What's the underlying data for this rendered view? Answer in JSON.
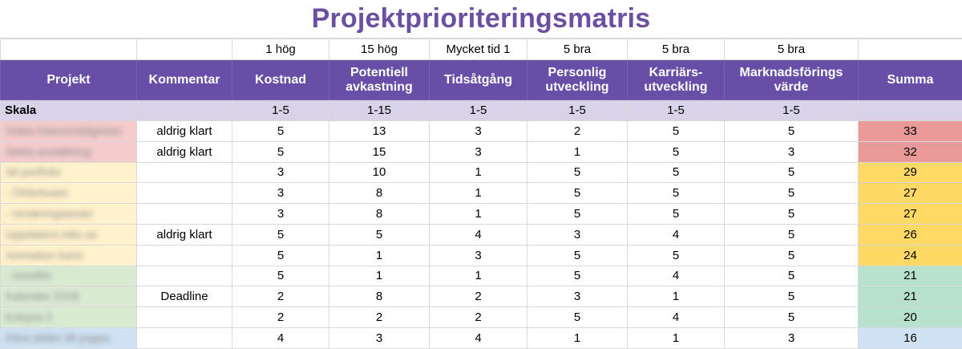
{
  "title": "Projektprioriteringsmatris",
  "colors": {
    "title": "#6a4fa3",
    "header_bg": "#674ea7",
    "skala_bg": "#d9d2e9",
    "rows": {
      "red": "#f4cccc",
      "yellow": "#fff2cc",
      "green": "#d9ead3",
      "blue": "#cfe2f3"
    },
    "summa": {
      "red": "#ea9999",
      "yellow": "#ffd966",
      "green": "#b7e1cd",
      "blue": "#cfe2f3"
    }
  },
  "scale_notes": [
    "",
    "",
    "1 hög",
    "15 hög",
    "Mycket tid 1",
    "5 bra",
    "5 bra",
    "5 bra",
    ""
  ],
  "headers": [
    "Projekt",
    "Kommentar",
    "Kostnad",
    "Potentiell avkastning",
    "Tidsåtgång",
    "Personlig utveckling",
    "Karriärs-utveckling",
    "Marknadsförings värde",
    "Summa"
  ],
  "skala": {
    "label": "Skala",
    "values": [
      "",
      "1-5",
      "1-15",
      "1-5",
      "1-5",
      "1-5",
      "1-5",
      ""
    ]
  },
  "rows": [
    {
      "projekt": "Sökta frilansmöjligheter",
      "kommentar": "aldrig klart",
      "kostnad": "5",
      "avkastning": "13",
      "tidsatgang": "3",
      "personlig": "2",
      "karriar": "5",
      "marknad": "5",
      "summa": "33",
      "color": "red"
    },
    {
      "projekt": "Sökta anställning",
      "kommentar": "aldrig klart",
      "kostnad": "5",
      "avkastning": "15",
      "tidsatgang": "3",
      "personlig": "1",
      "karriar": "5",
      "marknad": "3",
      "summa": "32",
      "color": "red"
    },
    {
      "projekt": "3d portfolio",
      "kommentar": "",
      "kostnad": "3",
      "avkastning": "10",
      "tidsatgang": "1",
      "personlig": "5",
      "karriar": "5",
      "marknad": "5",
      "summa": "29",
      "color": "yellow"
    },
    {
      "projekt": "- Örlönhuset",
      "kommentar": "",
      "kostnad": "3",
      "avkastning": "8",
      "tidsatgang": "1",
      "personlig": "5",
      "karriar": "5",
      "marknad": "5",
      "summa": "27",
      "color": "yellow"
    },
    {
      "projekt": "- renderingstester",
      "kommentar": "",
      "kostnad": "3",
      "avkastning": "8",
      "tidsatgang": "1",
      "personlig": "5",
      "karriar": "5",
      "marknad": "5",
      "summa": "27",
      "color": "yellow"
    },
    {
      "projekt": "Uppdatera mbs.se",
      "kommentar": "aldrig klart",
      "kostnad": "5",
      "avkastning": "5",
      "tidsatgang": "4",
      "personlig": "3",
      "karriar": "4",
      "marknad": "5",
      "summa": "26",
      "color": "yellow"
    },
    {
      "projekt": "Animation karin",
      "kommentar": "",
      "kostnad": "5",
      "avkastning": "1",
      "tidsatgang": "3",
      "personlig": "5",
      "karriar": "5",
      "marknad": "5",
      "summa": "24",
      "color": "yellow"
    },
    {
      "projekt": "- noveller",
      "kommentar": "",
      "kostnad": "5",
      "avkastning": "1",
      "tidsatgang": "1",
      "personlig": "5",
      "karriar": "4",
      "marknad": "5",
      "summa": "21",
      "color": "green"
    },
    {
      "projekt": "Kalender 2018",
      "kommentar": "Deadline",
      "kostnad": "2",
      "avkastning": "8",
      "tidsatgang": "2",
      "personlig": "3",
      "karriar": "1",
      "marknad": "5",
      "summa": "21",
      "color": "green"
    },
    {
      "projekt": "Kolsyra 2",
      "kommentar": "",
      "kostnad": "2",
      "avkastning": "2",
      "tidsatgang": "2",
      "personlig": "5",
      "karriar": "4",
      "marknad": "5",
      "summa": "20",
      "color": "green"
    },
    {
      "projekt": "Elton bilder till pappa",
      "kommentar": "",
      "kostnad": "4",
      "avkastning": "3",
      "tidsatgang": "4",
      "personlig": "1",
      "karriar": "1",
      "marknad": "3",
      "summa": "16",
      "color": "blue"
    }
  ]
}
